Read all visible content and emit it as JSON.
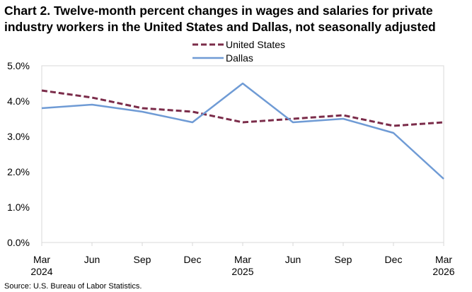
{
  "chart_data": {
    "type": "line",
    "title": "Chart 2. Twelve-month percent changes in wages and salaries for private industry workers in the United States and Dallas, not seasonally adjusted",
    "source": "Source: U.S. Bureau of Labor Statistics.",
    "x_ticks": [
      {
        "month": "Mar",
        "year": "2024"
      },
      {
        "month": "Jun",
        "year": ""
      },
      {
        "month": "Sep",
        "year": ""
      },
      {
        "month": "Dec",
        "year": ""
      },
      {
        "month": "Mar",
        "year": "2025"
      },
      {
        "month": "Jun",
        "year": ""
      },
      {
        "month": "Sep",
        "year": ""
      },
      {
        "month": "Dec",
        "year": ""
      },
      {
        "month": "Mar",
        "year": "2026"
      }
    ],
    "y_ticks": [
      "0.0%",
      "1.0%",
      "2.0%",
      "3.0%",
      "4.0%",
      "5.0%"
    ],
    "ylim": [
      0,
      5
    ],
    "grid": false,
    "legend_position": "top-center",
    "series": [
      {
        "name": "United States",
        "color": "#7b2c4a",
        "style": "dashed",
        "values": [
          4.3,
          4.1,
          3.8,
          3.7,
          3.4,
          3.5,
          3.6,
          3.3,
          3.4
        ]
      },
      {
        "name": "Dallas",
        "color": "#6f9bd5",
        "style": "solid",
        "values": [
          3.8,
          3.9,
          3.7,
          3.4,
          4.5,
          3.4,
          3.5,
          3.1,
          1.8
        ]
      }
    ]
  }
}
